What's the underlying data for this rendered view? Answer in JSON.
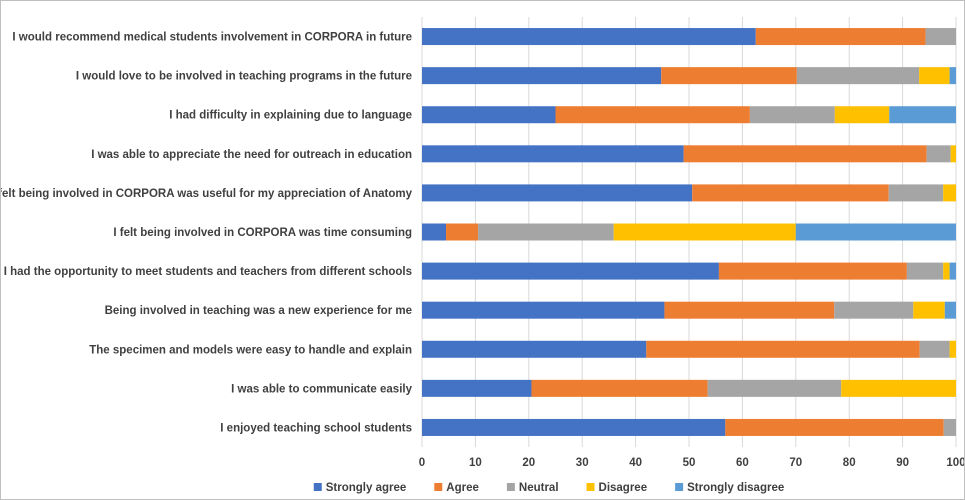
{
  "chart_data": {
    "type": "bar",
    "orientation": "horizontal",
    "stacked": true,
    "title": "",
    "xlabel": "",
    "ylabel": "",
    "xlim": [
      0,
      100
    ],
    "x_ticks": [
      0,
      10,
      20,
      30,
      40,
      50,
      60,
      70,
      80,
      90,
      100
    ],
    "grid": "vertical",
    "legend_position": "bottom",
    "categories": [
      "I would recommend medical students involvement in CORPORA in future",
      "I would love to be involved in teaching programs in the future",
      "I had difficulty in explaining due to language",
      "I was able to appreciate the need for outreach in education",
      "I felt being involved in CORPORA was useful for my appreciation of Anatomy",
      "I felt being involved in CORPORA was time consuming",
      "I had the opportunity to meet students and teachers from different schools",
      "Being involved in teaching was a new experience for me",
      "The specimen and models were easy to handle and explain",
      "I was able to communicate easily",
      "I enjoyed teaching school students"
    ],
    "series": [
      {
        "name": "Strongly agree",
        "color": "#4472c4",
        "values": [
          62.5,
          44.8,
          25.0,
          49.0,
          50.6,
          4.5,
          55.6,
          45.4,
          42.0,
          20.5,
          56.8
        ]
      },
      {
        "name": "Agree",
        "color": "#ed7d31",
        "values": [
          31.8,
          25.4,
          36.4,
          45.5,
          36.8,
          6.0,
          35.2,
          31.8,
          51.2,
          33.0,
          40.9
        ]
      },
      {
        "name": "Neutral",
        "color": "#a5a5a5",
        "values": [
          5.7,
          22.9,
          15.9,
          4.5,
          10.2,
          25.4,
          6.8,
          14.8,
          5.6,
          25.0,
          2.3
        ]
      },
      {
        "name": "Disagree",
        "color": "#ffc000",
        "values": [
          0,
          5.7,
          10.2,
          1.0,
          2.4,
          34.1,
          1.2,
          5.9,
          1.2,
          21.5,
          0
        ]
      },
      {
        "name": "Strongly disagree",
        "color": "#5b9bd5",
        "values": [
          0,
          1.2,
          12.5,
          0,
          0,
          30.0,
          1.2,
          2.1,
          0,
          0,
          0
        ]
      }
    ]
  }
}
